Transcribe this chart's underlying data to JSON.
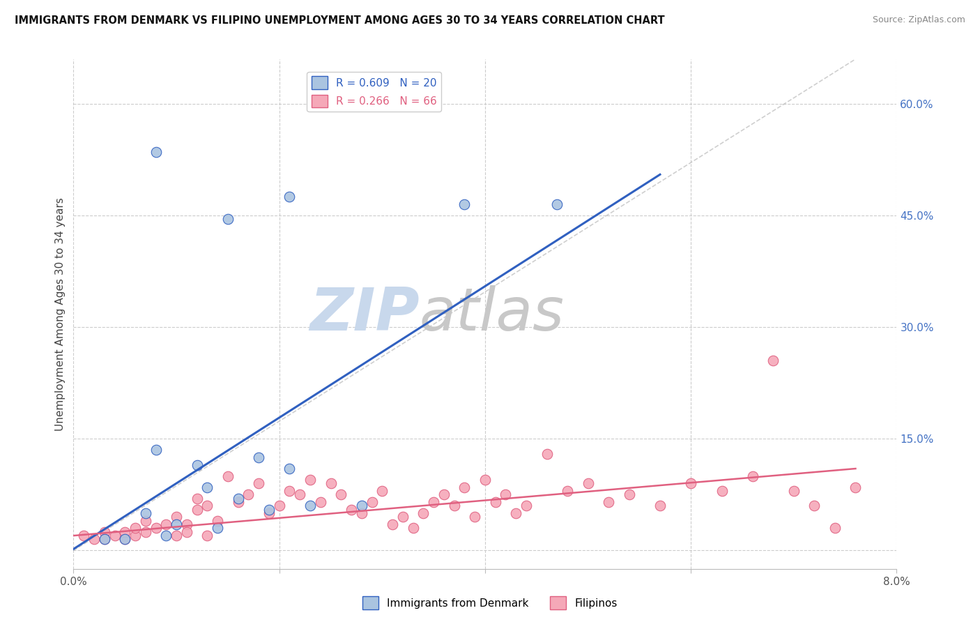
{
  "title": "IMMIGRANTS FROM DENMARK VS FILIPINO UNEMPLOYMENT AMONG AGES 30 TO 34 YEARS CORRELATION CHART",
  "source": "Source: ZipAtlas.com",
  "ylabel": "Unemployment Among Ages 30 to 34 years",
  "legend_blue_r": "R = 0.609",
  "legend_blue_n": "N = 20",
  "legend_pink_r": "R = 0.266",
  "legend_pink_n": "N = 66",
  "blue_color": "#aac4e0",
  "blue_line_color": "#3060c0",
  "pink_color": "#f5a8b8",
  "pink_line_color": "#e06080",
  "watermark_zip_color": "#c8d8ec",
  "watermark_atlas_color": "#c8c8c8",
  "background": "#ffffff",
  "grid_color": "#cccccc",
  "xmin": 0.0,
  "xmax": 0.08,
  "ymin": -0.025,
  "ymax": 0.66,
  "blue_scatter_x": [
    0.008,
    0.015,
    0.021,
    0.008,
    0.012,
    0.009,
    0.014,
    0.018,
    0.021,
    0.038,
    0.047,
    0.003,
    0.005,
    0.01,
    0.013,
    0.016,
    0.019,
    0.023,
    0.007,
    0.028
  ],
  "blue_scatter_y": [
    0.535,
    0.445,
    0.475,
    0.135,
    0.115,
    0.02,
    0.03,
    0.125,
    0.11,
    0.465,
    0.465,
    0.015,
    0.015,
    0.035,
    0.085,
    0.07,
    0.055,
    0.06,
    0.05,
    0.06
  ],
  "pink_scatter_x": [
    0.001,
    0.002,
    0.003,
    0.003,
    0.004,
    0.005,
    0.005,
    0.006,
    0.006,
    0.007,
    0.007,
    0.008,
    0.009,
    0.01,
    0.01,
    0.011,
    0.011,
    0.012,
    0.012,
    0.013,
    0.013,
    0.014,
    0.015,
    0.016,
    0.017,
    0.018,
    0.019,
    0.02,
    0.021,
    0.022,
    0.023,
    0.024,
    0.025,
    0.026,
    0.027,
    0.028,
    0.029,
    0.03,
    0.031,
    0.032,
    0.033,
    0.034,
    0.035,
    0.036,
    0.037,
    0.038,
    0.039,
    0.04,
    0.041,
    0.042,
    0.043,
    0.044,
    0.046,
    0.048,
    0.05,
    0.052,
    0.054,
    0.057,
    0.06,
    0.063,
    0.066,
    0.068,
    0.07,
    0.072,
    0.074,
    0.076
  ],
  "pink_scatter_y": [
    0.02,
    0.015,
    0.025,
    0.015,
    0.02,
    0.015,
    0.025,
    0.02,
    0.03,
    0.04,
    0.025,
    0.03,
    0.035,
    0.045,
    0.02,
    0.035,
    0.025,
    0.07,
    0.055,
    0.06,
    0.02,
    0.04,
    0.1,
    0.065,
    0.075,
    0.09,
    0.05,
    0.06,
    0.08,
    0.075,
    0.095,
    0.065,
    0.09,
    0.075,
    0.055,
    0.05,
    0.065,
    0.08,
    0.035,
    0.045,
    0.03,
    0.05,
    0.065,
    0.075,
    0.06,
    0.085,
    0.045,
    0.095,
    0.065,
    0.075,
    0.05,
    0.06,
    0.13,
    0.08,
    0.09,
    0.065,
    0.075,
    0.06,
    0.09,
    0.08,
    0.1,
    0.255,
    0.08,
    0.06,
    0.03,
    0.085
  ],
  "blue_line_x0": 0.0,
  "blue_line_y0": 0.002,
  "blue_line_x1": 0.057,
  "blue_line_y1": 0.505,
  "pink_line_x0": 0.0,
  "pink_line_y0": 0.02,
  "pink_line_x1": 0.076,
  "pink_line_y1": 0.11,
  "dash_line_x0": 0.0,
  "dash_line_y0": 0.0,
  "dash_line_x1": 0.076,
  "dash_line_y1": 0.66,
  "right_yticks": [
    0.0,
    0.15,
    0.3,
    0.45,
    0.6
  ],
  "right_yticklabels": [
    "",
    "15.0%",
    "30.0%",
    "45.0%",
    "60.0%"
  ],
  "xticks": [
    0.0,
    0.02,
    0.04,
    0.06,
    0.08
  ],
  "xticklabels": [
    "0.0%",
    "",
    "",
    "",
    "8.0%"
  ]
}
